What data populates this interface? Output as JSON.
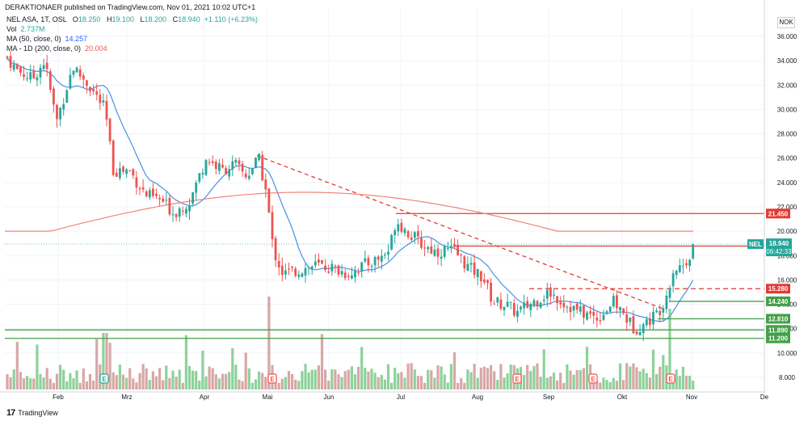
{
  "header": {
    "published": "DERAKTIONAER published on TradingView.com, Nov 01, 2021 10:02 UTC+1"
  },
  "legend": {
    "symbol_line": "NEL ASA, 1T, OSL",
    "o_label": "O",
    "o": "18.250",
    "h_label": "H",
    "h": "19.100",
    "l_label": "L",
    "l": "18.200",
    "c_label": "C",
    "c": "18.940",
    "change": "+1.110 (+6.23%)",
    "vol_label": "Vol",
    "vol": "2.737M",
    "ma50_label": "MA (50, close, 0)",
    "ma50": "14.257",
    "ma200_label": "MA - 1D (200, close, 0)",
    "ma200": "20.004"
  },
  "currency": "NOK",
  "footer": {
    "brand": "TradingView",
    "logo": "17"
  },
  "colors": {
    "up": "#26a69a",
    "down": "#ef5350",
    "ma50": "#4a90e2",
    "ma200": "#f4837d",
    "resistance": "#e53935",
    "support": "#43a047",
    "vol_up": "#8ed19a",
    "vol_down": "#d7a8a6",
    "price_line": "#26a69a"
  },
  "chart_data": {
    "type": "candlestick",
    "x_ticks": [
      "Feb",
      "Mrz",
      "Apr",
      "Mai",
      "Jun",
      "Jul",
      "Aug",
      "Sep",
      "Okt",
      "Nov",
      "De"
    ],
    "y_ticks": [
      "36.000",
      "34.000",
      "32.000",
      "30.000",
      "28.000",
      "26.000",
      "24.000",
      "22.000",
      "20.000",
      "18.000",
      "16.000",
      "14.000",
      "12.000",
      "10.000",
      "8.000"
    ],
    "ylim": [
      7.0,
      37.0
    ],
    "last_price": {
      "label": "NEL",
      "value": 18.94,
      "price_text": "18.940",
      "countdown": "06:42:33"
    },
    "levels": [
      {
        "value": 21.45,
        "text": "21.450",
        "kind": "resistance",
        "style": "solid"
      },
      {
        "value": 18.78,
        "text": "18.780",
        "kind": "resistance",
        "style": "solid"
      },
      {
        "value": 15.28,
        "text": "15.280",
        "kind": "resistance",
        "style": "dashed"
      },
      {
        "value": 14.24,
        "text": "14.240",
        "kind": "support",
        "style": "solid"
      },
      {
        "value": 12.81,
        "text": "12.810",
        "kind": "support",
        "style": "solid"
      },
      {
        "value": 11.89,
        "text": "11.890",
        "kind": "support",
        "style": "solid"
      },
      {
        "value": 11.2,
        "text": "11.200",
        "kind": "support",
        "style": "solid"
      }
    ],
    "earnings_markers": [
      "E",
      "E",
      "E",
      "E",
      "E"
    ],
    "ma50_label": "MA 50",
    "ma200_label": "MA 200"
  }
}
